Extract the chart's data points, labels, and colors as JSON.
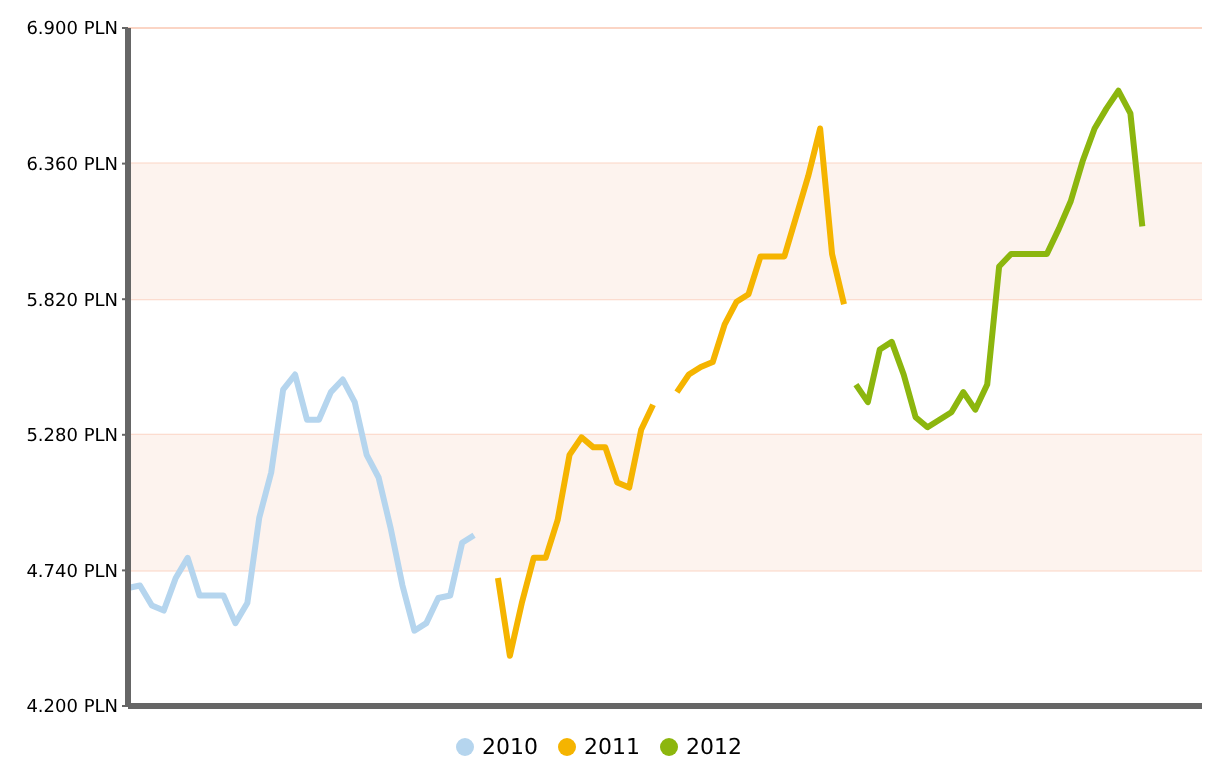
{
  "chart_data": {
    "type": "line",
    "categories": [
      null,
      null,
      null,
      null,
      null,
      null,
      null,
      null,
      null,
      null,
      null,
      null,
      null,
      null,
      null,
      null,
      null,
      null,
      null,
      null,
      null,
      null,
      null,
      null,
      null,
      null,
      null,
      null,
      null,
      null,
      null,
      null,
      null,
      null,
      null,
      null,
      null,
      null,
      null,
      null,
      null,
      null,
      null,
      null,
      null,
      null,
      null,
      null,
      null,
      null,
      null,
      null,
      null,
      null,
      null,
      null,
      null,
      null,
      null,
      null,
      null,
      null,
      null,
      null,
      null,
      null,
      null,
      null,
      null,
      null,
      null,
      null,
      null,
      null,
      null,
      null,
      null,
      null,
      null,
      null,
      null,
      null,
      null,
      null,
      null,
      null,
      null,
      null,
      null,
      null,
      null
    ],
    "series": [
      {
        "name": "2010",
        "color": "#b5d5ee",
        "values": [
          4.67,
          4.68,
          4.6,
          4.58,
          4.71,
          4.79,
          4.64,
          4.64,
          4.64,
          4.53,
          4.61,
          4.95,
          5.13,
          5.46,
          5.52,
          5.34,
          5.34,
          5.45,
          5.5,
          5.41,
          5.2,
          5.11,
          4.91,
          4.68,
          4.5,
          4.53,
          4.63,
          4.64,
          4.85,
          4.88,
          null,
          null,
          null,
          null,
          null,
          null,
          null,
          null,
          null,
          null,
          null,
          null,
          null,
          null,
          null,
          null,
          null,
          null,
          null,
          null,
          null,
          null,
          null,
          null,
          null,
          null,
          null,
          null,
          null,
          null,
          null,
          null,
          null,
          null,
          null,
          null,
          null,
          null,
          null,
          null,
          null,
          null,
          null,
          null,
          null,
          null,
          null,
          null,
          null,
          null,
          null,
          null,
          null,
          null,
          null,
          null,
          null,
          null,
          null,
          null,
          null
        ]
      },
      {
        "name": "2011",
        "color": "#f5b400",
        "values": [
          null,
          null,
          null,
          null,
          null,
          null,
          null,
          null,
          null,
          null,
          null,
          null,
          null,
          null,
          null,
          null,
          null,
          null,
          null,
          null,
          null,
          null,
          null,
          null,
          null,
          null,
          null,
          null,
          null,
          null,
          null,
          4.71,
          4.4,
          4.61,
          4.79,
          4.79,
          4.94,
          5.2,
          5.27,
          5.23,
          5.23,
          5.09,
          5.07,
          5.3,
          5.4,
          null,
          5.45,
          5.52,
          5.55,
          5.57,
          5.72,
          5.81,
          5.84,
          5.99,
          5.99,
          5.99,
          6.15,
          6.31,
          6.5,
          6.0,
          5.8,
          null,
          null,
          null,
          null,
          null,
          null,
          null,
          null,
          null,
          null,
          null,
          null,
          null,
          null,
          null,
          null,
          null,
          null,
          null,
          null,
          null,
          null,
          null,
          null,
          null,
          null,
          null,
          null,
          null,
          null
        ]
      },
      {
        "name": "2012",
        "color": "#8cb60e",
        "values": [
          null,
          null,
          null,
          null,
          null,
          null,
          null,
          null,
          null,
          null,
          null,
          null,
          null,
          null,
          null,
          null,
          null,
          null,
          null,
          null,
          null,
          null,
          null,
          null,
          null,
          null,
          null,
          null,
          null,
          null,
          null,
          null,
          null,
          null,
          null,
          null,
          null,
          null,
          null,
          null,
          null,
          null,
          null,
          null,
          null,
          null,
          null,
          null,
          null,
          null,
          null,
          null,
          null,
          null,
          null,
          null,
          null,
          null,
          null,
          null,
          null,
          5.48,
          5.41,
          5.62,
          5.65,
          5.52,
          5.35,
          5.31,
          5.34,
          5.37,
          5.45,
          5.38,
          5.48,
          5.95,
          6.0,
          6.0,
          6.0,
          6.0,
          6.1,
          6.21,
          6.37,
          6.5,
          6.58,
          6.65,
          6.56,
          6.11,
          null,
          null,
          null,
          null,
          null
        ]
      }
    ],
    "ylim": [
      4.2,
      6.9
    ],
    "yticks": [
      {
        "value": 4.2,
        "label": "4.200 PLN"
      },
      {
        "value": 4.74,
        "label": "4.740 PLN"
      },
      {
        "value": 5.28,
        "label": "5.280 PLN"
      },
      {
        "value": 5.82,
        "label": "5.820 PLN"
      },
      {
        "value": 6.36,
        "label": "6.360 PLN"
      },
      {
        "value": 6.9,
        "label": "6.900 PLN"
      }
    ],
    "bands": [
      {
        "axis": "y",
        "from": 4.74,
        "to": 5.28,
        "color": "#fdf3ee"
      },
      {
        "axis": "y",
        "from": 5.82,
        "to": 6.36,
        "color": "#fdf3ee"
      }
    ],
    "grid": "y",
    "legend": "bottom",
    "marker": "none",
    "line_style": "solid"
  }
}
